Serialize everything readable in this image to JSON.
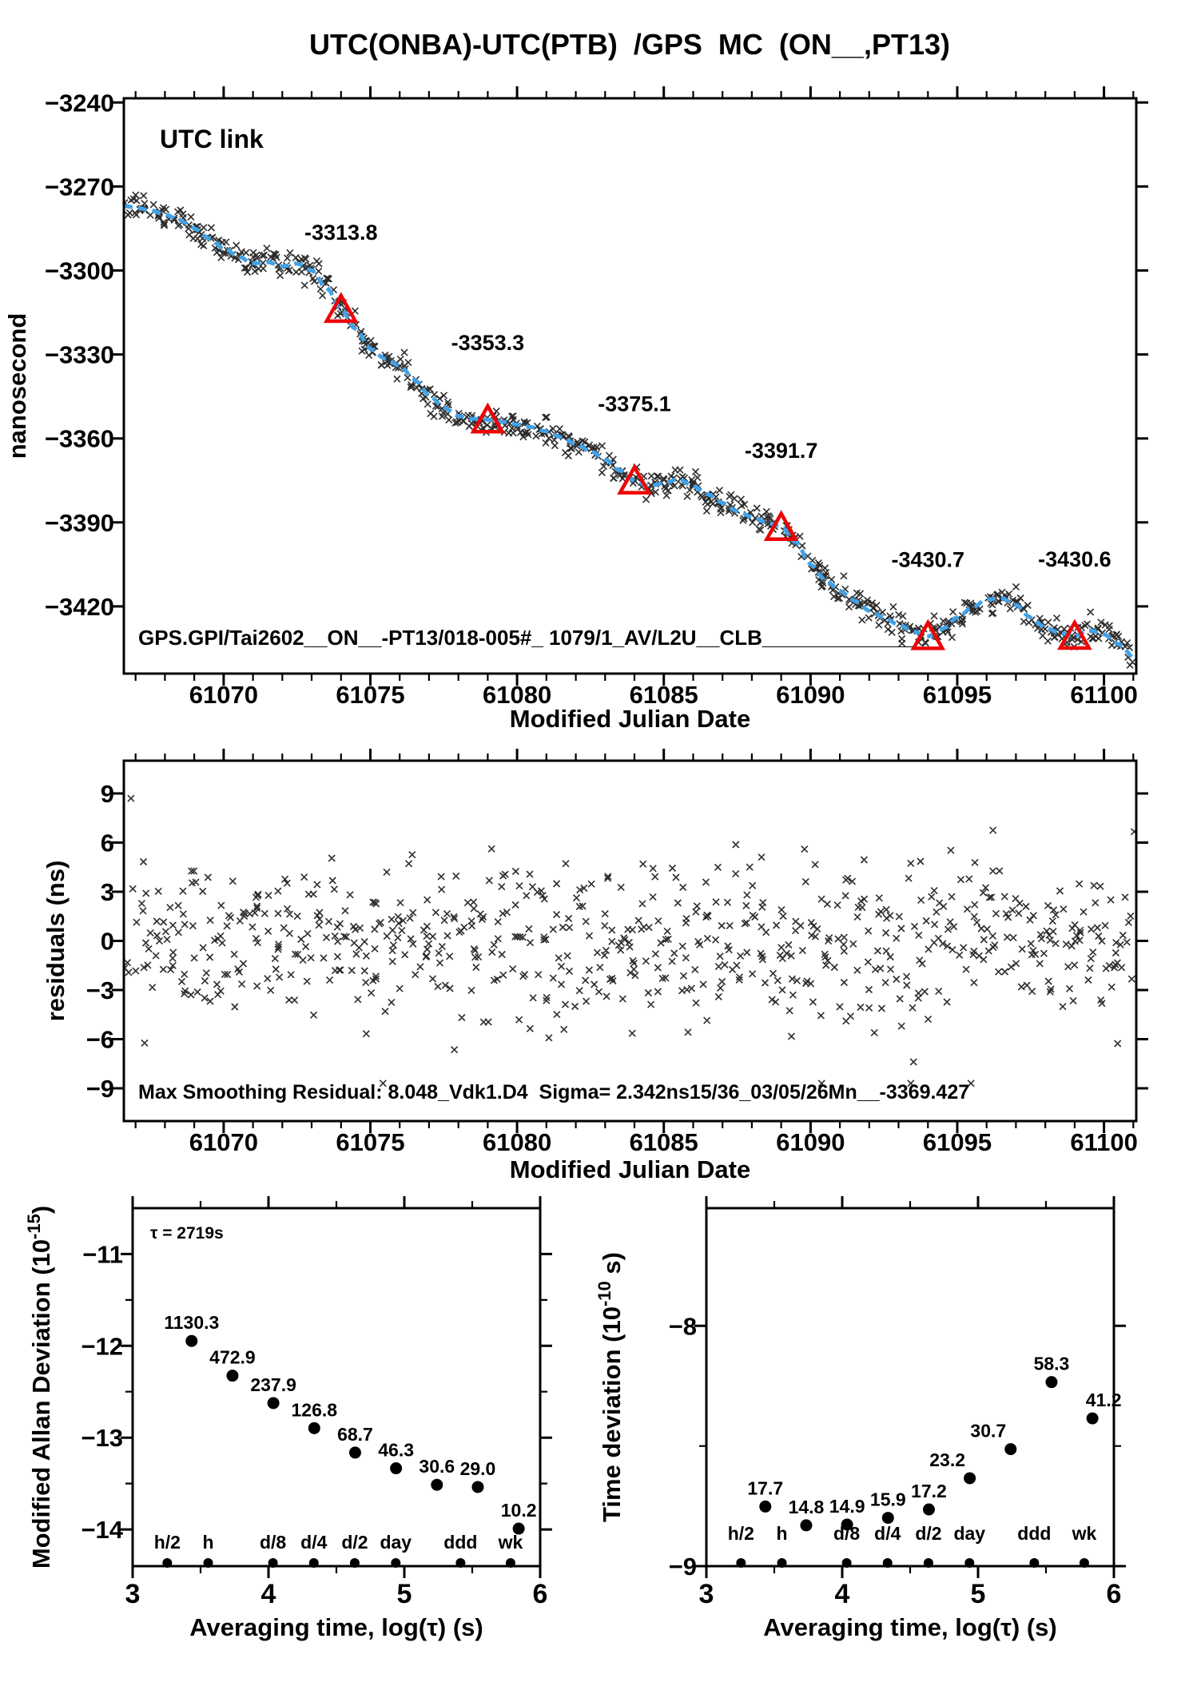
{
  "title": "UTC(ONBA)-UTC(PTB)  /GPS  MC  (ON__,PT13)",
  "colors": {
    "accent_red": "#ee0505",
    "trend_blue": "#42a2e8",
    "utc_link_olive": "#7d9b2d",
    "scatter_ink": "#1b1b1b",
    "axis_ink": "#000000"
  },
  "chart_data": [
    {
      "id": "main-chart",
      "type": "scatter",
      "xlabel": "Modified Julian Date",
      "ylabel": "nanosecond",
      "xlim": [
        61066.6,
        61101.1
      ],
      "ylim": [
        -3444,
        -3238.5
      ],
      "xticks": [
        61070,
        61075,
        61080,
        61085,
        61090,
        61095,
        61100
      ],
      "x_minor_step": 1,
      "yticks": [
        -3420,
        -3390,
        -3360,
        -3330,
        -3300,
        -3270,
        -3240
      ],
      "legend_annotation": "UTC link",
      "dataset_label": "GPS.GPI/Tai2602__ON__-PT13/018-005#_ 1079/1_AV/L2U__CLB_____________",
      "calibration_markers": [
        {
          "x": 61074,
          "y": -3313.8,
          "label": "-3313.8"
        },
        {
          "x": 61079,
          "y": -3353.3,
          "label": "-3353.3"
        },
        {
          "x": 61084,
          "y": -3375.1,
          "label": "-3375.1"
        },
        {
          "x": 61089,
          "y": -3391.7,
          "label": "-3391.7"
        },
        {
          "x": 61094,
          "y": -3430.7,
          "label": "-3430.7"
        },
        {
          "x": 61099,
          "y": -3430.6,
          "label": "-3430.6"
        }
      ],
      "trend": [
        [
          61066.6,
          -3277.0
        ],
        [
          61067.0,
          -3277.5
        ],
        [
          61067.5,
          -3278.5
        ],
        [
          61068.0,
          -3280.0
        ],
        [
          61068.5,
          -3282.0
        ],
        [
          61069.0,
          -3285.0
        ],
        [
          61069.5,
          -3288.5
        ],
        [
          61070.0,
          -3292.0
        ],
        [
          61070.5,
          -3295.0
        ],
        [
          61071.0,
          -3297.5
        ],
        [
          61071.5,
          -3297.0
        ],
        [
          61072.0,
          -3298.5
        ],
        [
          61072.5,
          -3297.5
        ],
        [
          61073.0,
          -3300.0
        ],
        [
          61073.5,
          -3306.0
        ],
        [
          61074.0,
          -3313.8
        ],
        [
          61074.5,
          -3321.0
        ],
        [
          61075.0,
          -3328.0
        ],
        [
          61075.5,
          -3331.5
        ],
        [
          61076.0,
          -3334.0
        ],
        [
          61076.5,
          -3339.0
        ],
        [
          61077.0,
          -3344.5
        ],
        [
          61077.5,
          -3349.0
        ],
        [
          61078.0,
          -3352.0
        ],
        [
          61078.5,
          -3353.0
        ],
        [
          61079.0,
          -3353.3
        ],
        [
          61079.5,
          -3354.0
        ],
        [
          61080.0,
          -3355.0
        ],
        [
          61080.5,
          -3356.0
        ],
        [
          61081.0,
          -3357.5
        ],
        [
          61081.5,
          -3359.5
        ],
        [
          61082.0,
          -3362.0
        ],
        [
          61082.5,
          -3364.5
        ],
        [
          61083.0,
          -3367.5
        ],
        [
          61083.5,
          -3371.5
        ],
        [
          61084.0,
          -3375.1
        ],
        [
          61084.5,
          -3377.0
        ],
        [
          61085.0,
          -3376.0
        ],
        [
          61085.5,
          -3374.5
        ],
        [
          61086.0,
          -3377.0
        ],
        [
          61086.5,
          -3380.0
        ],
        [
          61087.0,
          -3383.0
        ],
        [
          61087.5,
          -3386.0
        ],
        [
          61088.0,
          -3388.0
        ],
        [
          61088.5,
          -3390.0
        ],
        [
          61089.0,
          -3391.7
        ],
        [
          61089.5,
          -3397.0
        ],
        [
          61090.0,
          -3405.0
        ],
        [
          61090.5,
          -3410.5
        ],
        [
          61091.0,
          -3414.5
        ],
        [
          61091.5,
          -3418.0
        ],
        [
          61092.0,
          -3421.5
        ],
        [
          61092.5,
          -3424.0
        ],
        [
          61093.0,
          -3426.5
        ],
        [
          61093.5,
          -3429.0
        ],
        [
          61094.0,
          -3430.7
        ],
        [
          61094.5,
          -3428.0
        ],
        [
          61095.0,
          -3424.0
        ],
        [
          61095.5,
          -3420.5
        ],
        [
          61096.0,
          -3417.5
        ],
        [
          61096.5,
          -3417.0
        ],
        [
          61097.0,
          -3419.5
        ],
        [
          61097.5,
          -3424.0
        ],
        [
          61098.0,
          -3427.5
        ],
        [
          61098.5,
          -3429.5
        ],
        [
          61099.0,
          -3430.6
        ],
        [
          61099.5,
          -3428.5
        ],
        [
          61100.0,
          -3430.0
        ],
        [
          61100.5,
          -3433.5
        ],
        [
          61101.1,
          -3439.0
        ]
      ],
      "scatter_noise": {
        "n": 700,
        "sigma_ns": 2.342,
        "seed": 20251
      }
    },
    {
      "id": "residuals-chart",
      "type": "scatter",
      "xlabel": "Modified Julian Date",
      "ylabel": "residuals (ns)",
      "xlim": [
        61066.6,
        61101.1
      ],
      "ylim": [
        -11,
        11
      ],
      "xticks": [
        61070,
        61075,
        61080,
        61085,
        61090,
        61095,
        61100
      ],
      "x_minor_step": 1,
      "yticks": [
        -9,
        -6,
        -3,
        0,
        3,
        6,
        9
      ],
      "note": "Max Smoothing Residual: 8.048_Vdk1.D4  Sigma= 2.342ns15/36_03/05/26Mn__-3369.427",
      "scatter_noise": {
        "n": 700,
        "sigma_ns": 2.342,
        "seed": 777
      }
    },
    {
      "id": "mdev-chart",
      "type": "dev",
      "xlabel": "Averaging time, log(τ) (s)",
      "ylabel_parts": [
        "Modified Allan Deviation (10",
        "-15",
        ")"
      ],
      "xlim": [
        3,
        6
      ],
      "ylim": [
        -14.4,
        -10.5
      ],
      "xticks": [
        3,
        4,
        5,
        6
      ],
      "x_minor_step": 0.5,
      "yticks": [
        -14,
        -13,
        -12,
        -11
      ],
      "y_minor_step": 0.5,
      "tau_note": "τ = 2719s",
      "points": [
        {
          "log_tau": 3.434,
          "log_value": -11.947,
          "label": "1130.3"
        },
        {
          "log_tau": 3.735,
          "log_value": -12.325,
          "label": "472.9"
        },
        {
          "log_tau": 4.036,
          "log_value": -12.624,
          "label": "237.9"
        },
        {
          "log_tau": 4.337,
          "log_value": -12.897,
          "label": "126.8"
        },
        {
          "log_tau": 4.638,
          "log_value": -13.163,
          "label": "68.7"
        },
        {
          "log_tau": 4.939,
          "log_value": -13.334,
          "label": "46.3"
        },
        {
          "log_tau": 5.24,
          "log_value": -13.514,
          "label": "30.6"
        },
        {
          "log_tau": 5.541,
          "log_value": -13.538,
          "label": "29.0"
        },
        {
          "log_tau": 5.842,
          "log_value": -13.991,
          "label": "10.2"
        }
      ],
      "ref_marks": [
        {
          "label": "h/2",
          "log_tau": 3.255
        },
        {
          "label": "h",
          "log_tau": 3.556
        },
        {
          "label": "d/8",
          "log_tau": 4.033
        },
        {
          "label": "d/4",
          "log_tau": 4.334
        },
        {
          "label": "d/2",
          "log_tau": 4.635
        },
        {
          "label": "day",
          "log_tau": 4.937
        },
        {
          "label": "ddd",
          "log_tau": 5.414
        },
        {
          "label": "wk",
          "log_tau": 5.782
        }
      ]
    },
    {
      "id": "tdev-chart",
      "type": "dev",
      "xlabel": "Averaging time, log(τ) (s)",
      "ylabel_parts": [
        "Time deviation (10",
        "-10",
        " s)"
      ],
      "xlim": [
        3,
        6
      ],
      "ylim": [
        -9.0,
        -7.51
      ],
      "xticks": [
        3,
        4,
        5,
        6
      ],
      "x_minor_step": 0.5,
      "yticks": [
        -9,
        -8
      ],
      "y_minor_step": 0.5,
      "points": [
        {
          "log_tau": 3.434,
          "log_value": -8.752,
          "label": "17.7"
        },
        {
          "log_tau": 3.735,
          "log_value": -8.83,
          "label": "14.8"
        },
        {
          "log_tau": 4.036,
          "log_value": -8.827,
          "label": "14.9"
        },
        {
          "log_tau": 4.337,
          "log_value": -8.799,
          "label": "15.9"
        },
        {
          "log_tau": 4.638,
          "log_value": -8.764,
          "label": "17.2"
        },
        {
          "log_tau": 4.939,
          "log_value": -8.634,
          "label": "23.2",
          "label_dx": -28
        },
        {
          "log_tau": 5.24,
          "log_value": -8.513,
          "label": "30.7",
          "label_dx": -28
        },
        {
          "log_tau": 5.541,
          "log_value": -8.234,
          "label": "58.3"
        },
        {
          "log_tau": 5.842,
          "log_value": -8.385,
          "label": "41.2",
          "label_dx": 14
        }
      ],
      "ref_marks": [
        {
          "label": "h/2",
          "log_tau": 3.255
        },
        {
          "label": "h",
          "log_tau": 3.556
        },
        {
          "label": "d/8",
          "log_tau": 4.033
        },
        {
          "label": "d/4",
          "log_tau": 4.334
        },
        {
          "label": "d/2",
          "log_tau": 4.635
        },
        {
          "label": "day",
          "log_tau": 4.937
        },
        {
          "label": "ddd",
          "log_tau": 5.414
        },
        {
          "label": "wk",
          "log_tau": 5.782
        }
      ]
    }
  ]
}
